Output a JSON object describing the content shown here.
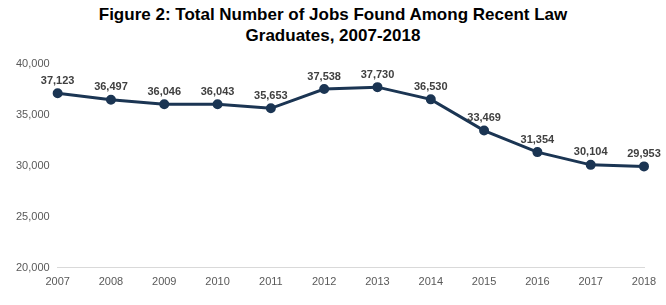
{
  "chart_data": {
    "type": "line",
    "title": "Figure 2: Total Number of Jobs Found Among Recent Law Graduates, 2007-2018",
    "categories": [
      "2007",
      "2008",
      "2009",
      "2010",
      "2011",
      "2012",
      "2013",
      "2014",
      "2015",
      "2016",
      "2017",
      "2018"
    ],
    "values": [
      37123,
      36497,
      36046,
      36043,
      35653,
      37538,
      37730,
      36530,
      33469,
      31354,
      30104,
      29953
    ],
    "value_labels": [
      "37,123",
      "36,497",
      "36,046",
      "36,043",
      "35,653",
      "37,538",
      "37,730",
      "36,530",
      "33,469",
      "31,354",
      "30,104",
      "29,953"
    ],
    "color": "#1b3553",
    "marker": "circle",
    "ylim": [
      20000,
      40000
    ],
    "yticks": [
      {
        "value": 20000,
        "label": "20,000"
      },
      {
        "value": 25000,
        "label": "25,000"
      },
      {
        "value": 30000,
        "label": "30,000"
      },
      {
        "value": 35000,
        "label": "35,000"
      },
      {
        "value": 40000,
        "label": "40,000"
      }
    ],
    "grid": false,
    "data_labels": true
  }
}
